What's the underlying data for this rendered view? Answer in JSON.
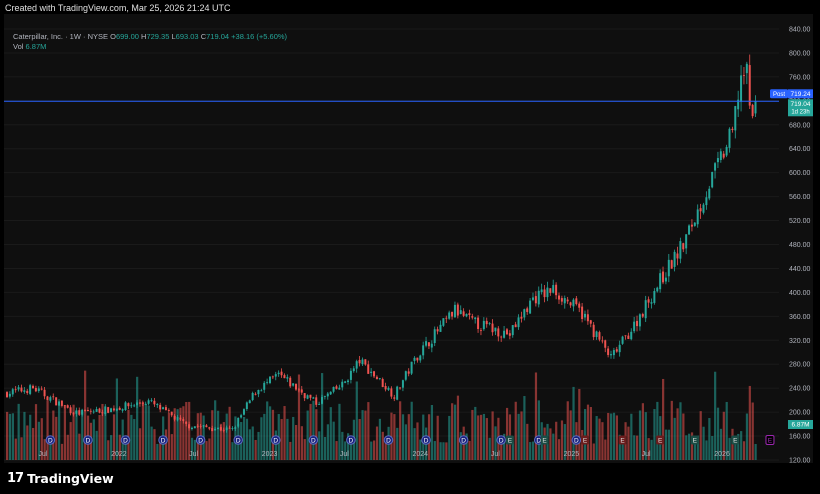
{
  "header": {
    "created_text": "Created with TradingView.com, Mar 25, 2026 21:24 UTC"
  },
  "legend": {
    "symbol": "Caterpillar, Inc. · 1W · NYSE",
    "o_label": "O",
    "o_value": "699.00",
    "h_label": "H",
    "h_value": "729.35",
    "l_label": "L",
    "l_value": "693.03",
    "c_label": "C",
    "c_value": "719.04",
    "change": "+38.16 (+5.60%)",
    "vol_label": "Vol",
    "vol_value": "6.87M"
  },
  "footer": {
    "brand": "TradingView",
    "logo_icon": "tradingview-logo-icon"
  },
  "colors": {
    "up": "#26a69a",
    "down": "#ef5350",
    "line": "#2962ff",
    "background": "#0f0f0f",
    "earnings_mark": "#9c27b0"
  },
  "chart_data": {
    "type": "candlestick",
    "symbol": "CAT",
    "interval": "1W",
    "exchange": "NYSE",
    "y_axis": {
      "min": 120,
      "max": 840,
      "ticks": [
        "120.00",
        "160.00",
        "200.00",
        "240.00",
        "280.00",
        "320.00",
        "360.00",
        "400.00",
        "440.00",
        "480.00",
        "520.00",
        "560.00",
        "600.00",
        "640.00",
        "680.00",
        "720.00",
        "760.00",
        "800.00",
        "840.00"
      ],
      "position": "right"
    },
    "x_axis": {
      "labels": [
        "Jul",
        "2022",
        "Jul",
        "2023",
        "Jul",
        "2024",
        "Jul",
        "2025",
        "Jul",
        "2026"
      ]
    },
    "price_labels": {
      "post_tag": "Post",
      "post_value": "719.24",
      "last_value": "719.04",
      "countdown": "1d 23h"
    },
    "volume_label": "6.87M",
    "trend_anchors": [
      {
        "date": "2021-04-05",
        "close": 232
      },
      {
        "date": "2021-06-07",
        "close": 240
      },
      {
        "date": "2021-09-20",
        "close": 198
      },
      {
        "date": "2021-12-13",
        "close": 205
      },
      {
        "date": "2022-03-14",
        "close": 218
      },
      {
        "date": "2022-06-13",
        "close": 178
      },
      {
        "date": "2022-10-03",
        "close": 170
      },
      {
        "date": "2022-11-28",
        "close": 235
      },
      {
        "date": "2023-01-23",
        "close": 262
      },
      {
        "date": "2023-04-24",
        "close": 215
      },
      {
        "date": "2023-06-26",
        "close": 245
      },
      {
        "date": "2023-08-07",
        "close": 286
      },
      {
        "date": "2023-10-30",
        "close": 228
      },
      {
        "date": "2023-12-25",
        "close": 295
      },
      {
        "date": "2024-03-25",
        "close": 370
      },
      {
        "date": "2024-05-06",
        "close": 350
      },
      {
        "date": "2024-08-05",
        "close": 330
      },
      {
        "date": "2024-09-30",
        "close": 390
      },
      {
        "date": "2024-11-18",
        "close": 405
      },
      {
        "date": "2025-01-27",
        "close": 365
      },
      {
        "date": "2025-04-07",
        "close": 290
      },
      {
        "date": "2025-06-02",
        "close": 345
      },
      {
        "date": "2025-08-04",
        "close": 420
      },
      {
        "date": "2025-09-29",
        "close": 480
      },
      {
        "date": "2025-12-01",
        "close": 580
      },
      {
        "date": "2026-01-26",
        "close": 665
      },
      {
        "date": "2026-02-16",
        "close": 765
      },
      {
        "date": "2026-03-02",
        "close": 760
      },
      {
        "date": "2026-03-16",
        "close": 681
      },
      {
        "date": "2026-03-23",
        "close": 719.04
      }
    ],
    "event_markers": {
      "dividend": "D",
      "earnings": "E"
    }
  }
}
